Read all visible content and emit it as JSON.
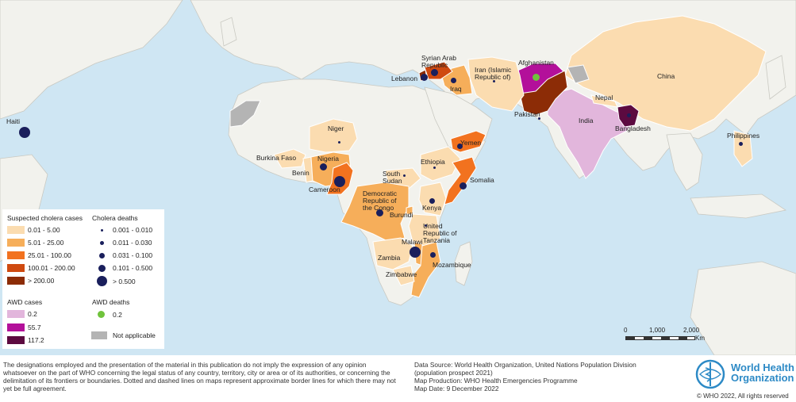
{
  "colors": {
    "ocean": "#cfe6f3",
    "land": "#f2f2ed",
    "cholera_0_5": "#fbdcb0",
    "cholera_5_25": "#f6ae5a",
    "cholera_25_100": "#f2721f",
    "cholera_100_200": "#cf4a10",
    "cholera_200": "#8c2c06",
    "awd_02": "#e2b6dc",
    "awd_557": "#b3109a",
    "awd_1172": "#5c0a40",
    "not_applicable": "#b4b4b4",
    "deaths_dot": "#1a1f5c",
    "awd_death_dot": "#70c33c"
  },
  "countries": {
    "haiti": "Haiti",
    "niger": "Niger",
    "burkina_faso": "Burkina Faso",
    "benin": "Benin",
    "nigeria": "Nigeria",
    "cameroon": "Cameroon",
    "south_sudan": "South\nSudan",
    "ethiopia": "Ethiopia",
    "somalia": "Somalia",
    "kenya": "Kenya",
    "drc": "Democratic\nRepublic of\nthe Congo",
    "burundi": "Burundi",
    "tanzania": "United\nRepublic of\nTanzania",
    "malawi": "Malawi",
    "zambia": "Zambia",
    "mozambique": "Mozambique",
    "zimbabwe": "Zimbabwe",
    "yemen": "Yemen",
    "syria": "Syrian Arab\nRepublic",
    "lebanon": "Lebanon",
    "iraq": "Iraq",
    "iran": "Iran (Islamic\nRepublic of)",
    "afghanistan": "Afghanistan",
    "pakistan": "Pakistan",
    "nepal": "Nepal",
    "india": "India",
    "bangladesh": "Bangladesh",
    "china": "China",
    "philippines": "Philippines"
  },
  "legend": {
    "cases_title": "Suspected cholera cases",
    "cases": [
      "0.01 - 5.00",
      "5.01 - 25.00",
      "25.01 - 100.00",
      "100.01 - 200.00",
      "> 200.00"
    ],
    "deaths_title": "Cholera deaths",
    "deaths": [
      "0.001 - 0.010",
      "0.011 - 0.030",
      "0.031 - 0.100",
      "0.101 - 0.500",
      "> 0.500"
    ],
    "awd_cases_title": "AWD cases",
    "awd_cases": [
      "0.2",
      "55.7",
      "117.2"
    ],
    "awd_deaths_title": "AWD deaths",
    "awd_deaths": [
      "0.2"
    ],
    "not_applicable": "Not applicable"
  },
  "scale": {
    "ticks": [
      "0",
      "1,000",
      "2,000"
    ],
    "unit": "Km"
  },
  "footer": {
    "disclaimer": "The designations employed and the presentation of the material in this publication do not imply the expression of any opinion whatsoever on the part of WHO concerning the legal status of any country, territory, city or area or of its authorities, or concerning the delimitation of its frontiers or boundaries. Dotted and dashed lines on maps represent approximate border lines for which there may not yet be full agreement.",
    "source_line1": "Data Source: World Health Organization, United Nations Population Division",
    "source_line2": "(population prospect 2021)",
    "production": "Map Production: WHO Health Emergencies Programme",
    "date": "Map Date: 9 December 2022",
    "who_name_line1": "World Health",
    "who_name_line2": "Organization",
    "copyright": "© WHO 2022, All rights reserved"
  }
}
